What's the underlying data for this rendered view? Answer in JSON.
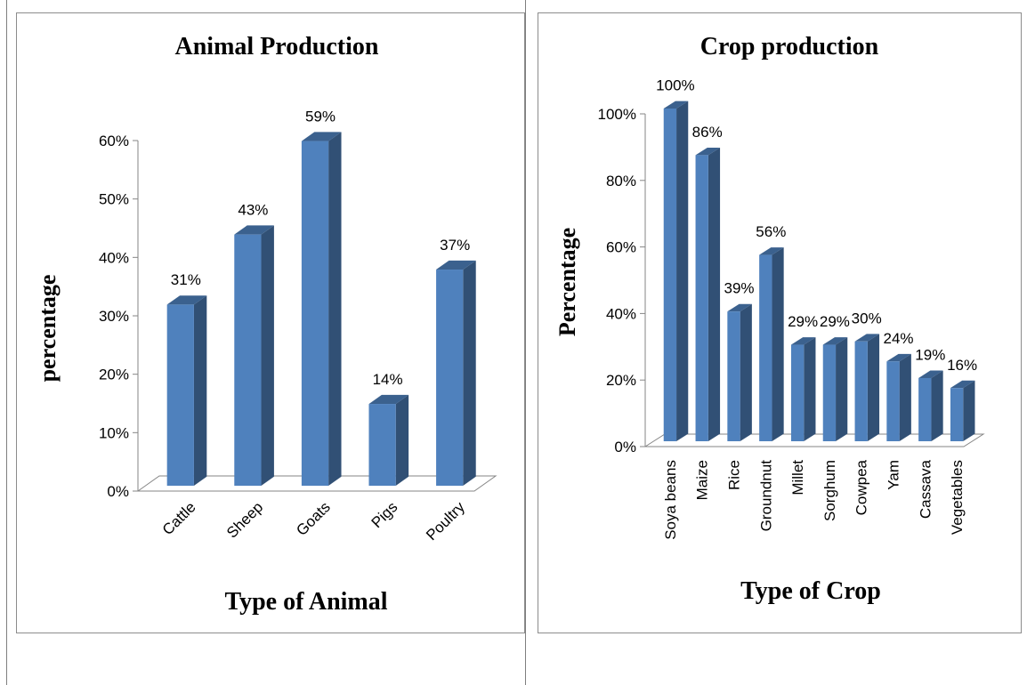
{
  "chart_data": [
    {
      "type": "bar",
      "title": "Animal Production",
      "xlabel": "Type of Animal",
      "ylabel": "percentage",
      "categories": [
        "Cattle",
        "Sheep",
        "Goats",
        "Pigs",
        "Poultry"
      ],
      "values": [
        31,
        43,
        59,
        14,
        37
      ],
      "data_labels": [
        "31%",
        "43%",
        "59%",
        "14%",
        "37%"
      ],
      "yticks": [
        "0%",
        "10%",
        "20%",
        "30%",
        "40%",
        "50%",
        "60%"
      ],
      "ylim": [
        0,
        60
      ],
      "bar_color": "#4f81bd",
      "style": "3d-column",
      "legend": "none",
      "grid": false
    },
    {
      "type": "bar",
      "title": "Crop production",
      "xlabel": "Type of Crop",
      "ylabel": "Percentage",
      "categories": [
        "Soya beans",
        "Maize",
        "Rice",
        "Groundnut",
        "Millet",
        "Sorghum",
        "Cowpea",
        "Yam",
        "Cassava",
        "Vegetables"
      ],
      "values": [
        100,
        86,
        39,
        56,
        29,
        29,
        30,
        24,
        19,
        16
      ],
      "data_labels": [
        "100%",
        "86%",
        "39%",
        "56%",
        "29%",
        "29%",
        "30%",
        "24%",
        "19%",
        "16%"
      ],
      "yticks": [
        "0%",
        "20%",
        "40%",
        "60%",
        "80%",
        "100%"
      ],
      "ylim": [
        0,
        100
      ],
      "bar_color": "#4f81bd",
      "style": "3d-column",
      "legend": "none",
      "grid": false
    }
  ]
}
